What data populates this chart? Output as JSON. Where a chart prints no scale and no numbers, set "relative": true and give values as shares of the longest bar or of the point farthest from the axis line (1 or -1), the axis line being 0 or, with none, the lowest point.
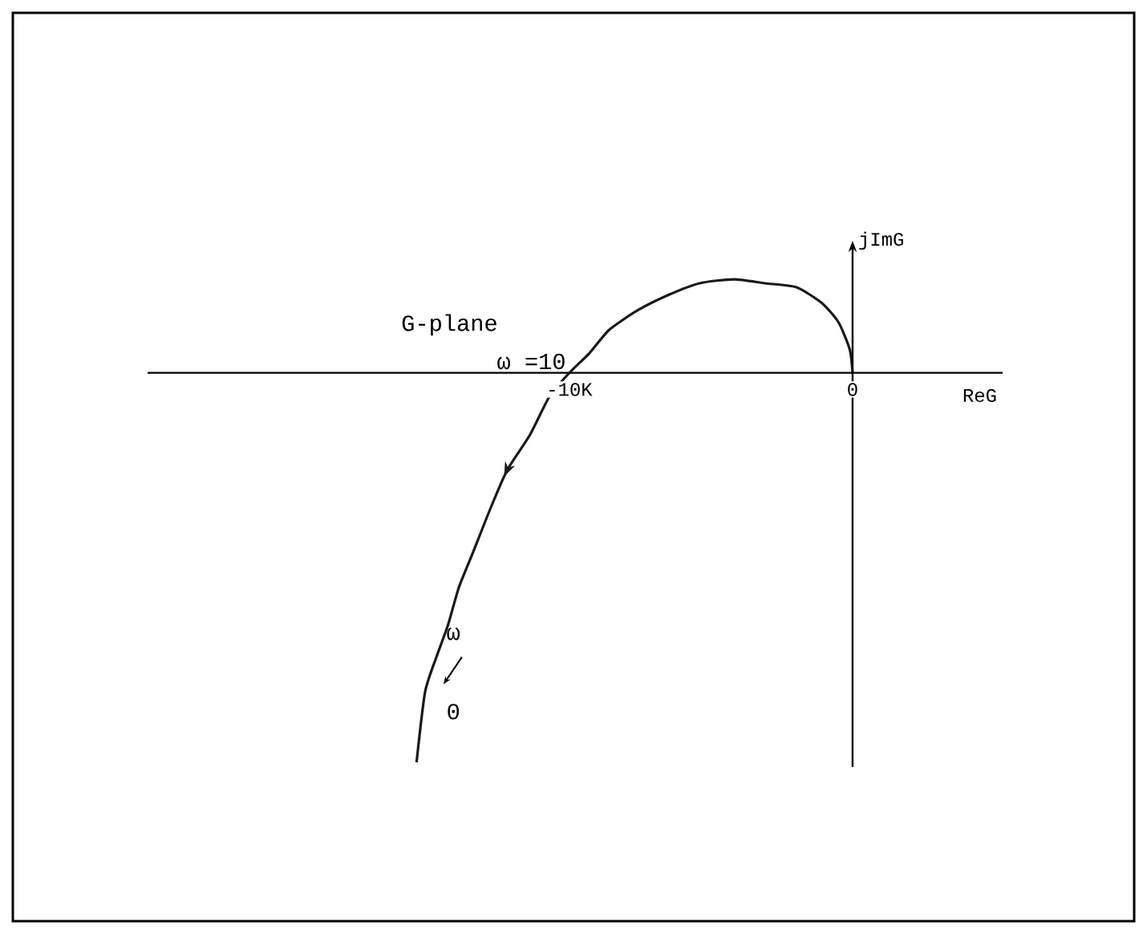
{
  "chart_data": {
    "type": "line",
    "title": "G-plane",
    "xlabel": "ReG",
    "ylabel": "jImG",
    "relative": true,
    "x": [
      0,
      -0.1,
      -0.5,
      -1.1,
      -2.0,
      -3.1,
      -4.2,
      -5.4,
      -6.5,
      -7.6,
      -8.6,
      -9.3,
      -10.0,
      -10.7,
      -11.4,
      -12.2,
      -12.8,
      -13.4,
      -13.9,
      -14.3,
      -14.7,
      -15.1,
      -15.4
    ],
    "series": [
      {
        "color": "#1a1a1a",
        "values": [
          0,
          0.06,
          0.13,
          0.18,
          0.22,
          0.23,
          0.24,
          0.23,
          0.2,
          0.16,
          0.11,
          0.05,
          0,
          -0.06,
          -0.16,
          -0.25,
          -0.35,
          -0.46,
          -0.55,
          -0.65,
          -0.73,
          -0.82,
          -1.0
        ]
      }
    ],
    "xlim": [
      -24.9,
      5.3
    ],
    "xticks": [
      {
        "value": -10,
        "label": "-10K"
      },
      0
    ],
    "annotations": [
      {
        "text": "ω =10",
        "x": -10,
        "y": 0
      },
      "ω",
      "0"
    ]
  }
}
